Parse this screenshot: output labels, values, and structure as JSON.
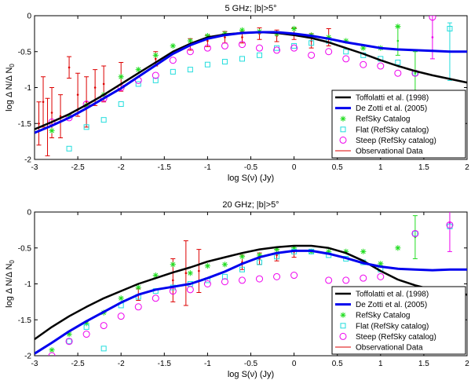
{
  "colors": {
    "tofolatti": "#000000",
    "dezotti": "#0000ee",
    "refsky": "#22dd22",
    "flat": "#22dddd",
    "steep": "#ee00ee",
    "obs": "#dd0000"
  },
  "chart_data": [
    {
      "type": "line",
      "title": "5 GHz; |b|>5°",
      "xlabel": "log S(ν) (Jy)",
      "ylabel": "log Δ N/Δ N",
      "ylabel_sub": "0",
      "xlim": [
        -3,
        2
      ],
      "ylim": [
        -2,
        0
      ],
      "xticks": [
        "-3",
        "-2.5",
        "-2",
        "-1.5",
        "-1",
        "-0.5",
        "0",
        "0.5",
        "1",
        "1.5",
        "2"
      ],
      "yticks": [
        "0",
        "-0.5",
        "-1",
        "-1.5",
        "-2"
      ],
      "legend": {
        "position": "bottom-right",
        "entries": [
          "Toffolatti et al. (1998)",
          "De Zotti et al. (2005)",
          "RefSky Catalog",
          "Flat (RefSky catalog)",
          "Steep (RefSky catalog)",
          "Observational Data"
        ]
      },
      "series": [
        {
          "name": "Toffolatti et al. (1998)",
          "kind": "line",
          "x": [
            -3.0,
            -2.8,
            -2.6,
            -2.4,
            -2.2,
            -2.0,
            -1.8,
            -1.6,
            -1.4,
            -1.2,
            -1.0,
            -0.8,
            -0.6,
            -0.4,
            -0.2,
            0.0,
            0.2,
            0.4,
            0.6,
            0.8,
            1.0,
            1.2,
            1.4,
            1.6,
            1.8,
            2.0
          ],
          "y": [
            -1.58,
            -1.48,
            -1.37,
            -1.24,
            -1.1,
            -0.95,
            -0.8,
            -0.65,
            -0.5,
            -0.39,
            -0.3,
            -0.26,
            -0.24,
            -0.23,
            -0.24,
            -0.27,
            -0.31,
            -0.37,
            -0.45,
            -0.53,
            -0.62,
            -0.7,
            -0.77,
            -0.83,
            -0.88,
            -0.93
          ]
        },
        {
          "name": "De Zotti et al. (2005)",
          "kind": "line",
          "x": [
            -3.0,
            -2.8,
            -2.6,
            -2.4,
            -2.2,
            -2.0,
            -1.8,
            -1.6,
            -1.4,
            -1.2,
            -1.0,
            -0.8,
            -0.6,
            -0.4,
            -0.2,
            0.0,
            0.2,
            0.4,
            0.6,
            0.8,
            1.0,
            1.2,
            1.4,
            1.6,
            1.8,
            2.0
          ],
          "y": [
            -1.63,
            -1.53,
            -1.42,
            -1.29,
            -1.15,
            -1.01,
            -0.85,
            -0.69,
            -0.53,
            -0.41,
            -0.32,
            -0.27,
            -0.24,
            -0.23,
            -0.23,
            -0.25,
            -0.28,
            -0.32,
            -0.37,
            -0.41,
            -0.45,
            -0.47,
            -0.48,
            -0.49,
            -0.5,
            -0.5
          ]
        },
        {
          "name": "RefSky Catalog",
          "kind": "marker",
          "x": [
            -2.8,
            -2.6,
            -2.4,
            -2.2,
            -2.0,
            -1.8,
            -1.6,
            -1.4,
            -1.2,
            -1.0,
            -0.8,
            -0.6,
            -0.4,
            -0.2,
            0.0,
            0.2,
            0.4,
            0.6,
            0.8,
            1.0,
            1.2
          ],
          "y": [
            -1.6,
            -1.4,
            -1.25,
            -1.1,
            -0.85,
            -0.75,
            -0.55,
            -0.42,
            -0.35,
            -0.28,
            -0.25,
            -0.2,
            -0.22,
            -0.25,
            -0.18,
            -0.27,
            -0.3,
            -0.35,
            -0.45,
            -0.45,
            -0.15
          ]
        },
        {
          "name": "Flat (RefSky catalog)",
          "kind": "marker",
          "x": [
            -2.6,
            -2.4,
            -2.2,
            -2.0,
            -1.8,
            -1.6,
            -1.4,
            -1.2,
            -1.0,
            -0.8,
            -0.6,
            -0.4,
            -0.2,
            0.0,
            0.2,
            0.4,
            0.6,
            0.8,
            1.0,
            1.2,
            1.4,
            1.8
          ],
          "y": [
            -1.85,
            -1.55,
            -1.45,
            -1.23,
            -0.95,
            -0.9,
            -0.78,
            -0.75,
            -0.68,
            -0.64,
            -0.6,
            -0.55,
            -0.45,
            -0.42,
            -0.38,
            -0.35,
            -0.5,
            -0.55,
            -0.6,
            -0.65,
            -0.8,
            -0.18
          ]
        },
        {
          "name": "Steep (RefSky catalog)",
          "kind": "marker",
          "x": [
            -2.8,
            -2.6,
            -2.4,
            -2.2,
            -2.0,
            -1.8,
            -1.6,
            -1.4,
            -1.2,
            -1.0,
            -0.8,
            -0.6,
            -0.4,
            -0.2,
            0.0,
            0.2,
            0.4,
            0.6,
            0.8,
            1.0,
            1.2,
            1.4,
            1.6
          ],
          "y": [
            -1.48,
            -1.42,
            -1.23,
            -1.15,
            -1.0,
            -0.9,
            -0.83,
            -0.62,
            -0.5,
            -0.45,
            -0.42,
            -0.4,
            -0.45,
            -0.48,
            -0.45,
            -0.55,
            -0.5,
            -0.6,
            -0.68,
            -0.7,
            -0.8,
            -0.8,
            -0.02
          ]
        },
        {
          "name": "Observational Data",
          "kind": "errorbar",
          "x": [
            -2.95,
            -2.9,
            -2.85,
            -2.8,
            -2.7,
            -2.6,
            -2.5,
            -2.4,
            -2.3,
            -2.2,
            -2.0,
            -1.6,
            -1.2,
            -1.0,
            -0.8,
            -0.6,
            -0.4,
            -0.2,
            0.0,
            0.2,
            0.4,
            1.2,
            1.4,
            1.6,
            1.8
          ],
          "y": [
            -1.5,
            -1.2,
            -1.55,
            -1.35,
            -1.4,
            -0.72,
            -1.1,
            -1.2,
            -1.0,
            -0.95,
            -0.85,
            -0.6,
            -0.4,
            -0.35,
            -0.3,
            -0.3,
            -0.25,
            -0.28,
            -0.25,
            -0.35,
            -0.3,
            -0.35,
            -0.8,
            -0.3,
            -0.5
          ],
          "yerr": [
            0.3,
            0.35,
            0.4,
            0.35,
            0.3,
            0.15,
            0.3,
            0.35,
            0.25,
            0.25,
            0.2,
            0.1,
            0.08,
            0.08,
            0.08,
            0.08,
            0.08,
            0.08,
            0.08,
            0.1,
            0.12,
            0.2,
            0.3,
            0.3,
            0.4
          ],
          "errcolor": [
            "#dd0000",
            "#dd0000",
            "#dd0000",
            "#dd0000",
            "#dd0000",
            "#dd0000",
            "#dd0000",
            "#dd0000",
            "#dd0000",
            "#dd0000",
            "#dd0000",
            "#dd0000",
            "#dd0000",
            "#dd0000",
            "#dd0000",
            "#dd0000",
            "#dd0000",
            "#dd0000",
            "#dd0000",
            "#dd0000",
            "#dd0000",
            "#22dd22",
            "#22dd22",
            "#ee00ee",
            "#22dddd"
          ]
        }
      ]
    },
    {
      "type": "line",
      "title": "20 GHz; |b|>5°",
      "xlabel": "log S(ν) (Jy)",
      "ylabel": "log Δ N/Δ N",
      "ylabel_sub": "0",
      "xlim": [
        -3,
        2
      ],
      "ylim": [
        -2,
        0
      ],
      "xticks": [
        "-3",
        "-2.5",
        "-2",
        "-1.5",
        "-1",
        "-0.5",
        "0",
        "0.5",
        "1",
        "1.5",
        "2"
      ],
      "yticks": [
        "0",
        "-0.5",
        "-1",
        "-1.5",
        "-2"
      ],
      "legend": {
        "position": "bottom-right",
        "entries": [
          "Toffolatti et al. (1998)",
          "De Zotti et al. (2005)",
          "RefSky Catalog",
          "Flat (RefSky catalog)",
          "Steep (RefSky catalog)",
          "Observational Data"
        ]
      },
      "series": [
        {
          "name": "Toffolatti et al. (1998)",
          "kind": "line",
          "x": [
            -3.0,
            -2.8,
            -2.6,
            -2.4,
            -2.2,
            -2.0,
            -1.8,
            -1.6,
            -1.4,
            -1.2,
            -1.0,
            -0.8,
            -0.6,
            -0.4,
            -0.2,
            0.0,
            0.2,
            0.4,
            0.6,
            0.8,
            1.0,
            1.2,
            1.4,
            1.6,
            1.8,
            2.0
          ],
          "y": [
            -1.77,
            -1.6,
            -1.45,
            -1.32,
            -1.2,
            -1.1,
            -1.0,
            -0.92,
            -0.84,
            -0.77,
            -0.69,
            -0.63,
            -0.57,
            -0.52,
            -0.49,
            -0.47,
            -0.47,
            -0.5,
            -0.57,
            -0.68,
            -0.82,
            -0.94,
            -1.02,
            -1.08,
            -1.12,
            -1.15
          ]
        },
        {
          "name": "De Zotti et al. (2005)",
          "kind": "line",
          "x": [
            -3.0,
            -2.8,
            -2.6,
            -2.4,
            -2.2,
            -2.0,
            -1.8,
            -1.6,
            -1.4,
            -1.2,
            -1.0,
            -0.8,
            -0.6,
            -0.4,
            -0.2,
            0.0,
            0.2,
            0.4,
            0.6,
            0.8,
            1.0,
            1.2,
            1.4,
            1.6,
            1.8,
            2.0
          ],
          "y": [
            -1.97,
            -1.82,
            -1.66,
            -1.52,
            -1.39,
            -1.26,
            -1.15,
            -1.08,
            -1.04,
            -1.0,
            -0.92,
            -0.83,
            -0.72,
            -0.63,
            -0.57,
            -0.54,
            -0.54,
            -0.58,
            -0.64,
            -0.71,
            -0.76,
            -0.79,
            -0.8,
            -0.81,
            -0.8,
            -0.8
          ]
        },
        {
          "name": "RefSky Catalog",
          "kind": "marker",
          "x": [
            -2.8,
            -2.6,
            -2.4,
            -2.2,
            -2.0,
            -1.8,
            -1.6,
            -1.4,
            -1.2,
            -1.0,
            -0.8,
            -0.6,
            -0.4,
            -0.2,
            0.0,
            0.2,
            0.4,
            0.6,
            0.8,
            1.0,
            1.2
          ],
          "y": [
            -1.92,
            -1.7,
            -1.55,
            -1.4,
            -1.2,
            -1.05,
            -0.88,
            -0.73,
            -0.85,
            -0.75,
            -0.73,
            -0.62,
            -0.6,
            -0.52,
            -0.5,
            -0.55,
            -0.55,
            -0.55,
            -0.55,
            -0.72,
            -0.5
          ]
        },
        {
          "name": "Flat (RefSky catalog)",
          "kind": "marker",
          "x": [
            -2.6,
            -2.4,
            -2.2,
            -2.0,
            -1.8,
            -1.6,
            -1.4,
            -1.2,
            -1.0,
            -0.8,
            -0.6,
            -0.4,
            -0.2,
            0.0,
            0.2,
            0.4,
            0.6,
            0.8,
            1.0,
            1.4,
            1.8
          ],
          "y": [
            -1.8,
            -1.6,
            -1.9,
            -1.3,
            -1.18,
            -1.1,
            -1.05,
            -1.0,
            -0.95,
            -0.9,
            -0.8,
            -0.7,
            -0.62,
            -0.55,
            -0.55,
            -0.6,
            -0.65,
            -0.7,
            -0.8,
            -0.3,
            -0.2
          ]
        },
        {
          "name": "Steep (RefSky catalog)",
          "kind": "marker",
          "x": [
            -2.8,
            -2.6,
            -2.4,
            -2.2,
            -2.0,
            -1.8,
            -1.6,
            -1.4,
            -1.2,
            -1.0,
            -0.8,
            -0.6,
            -0.4,
            -0.2,
            0.0,
            0.4,
            0.6,
            0.8,
            1.0,
            1.4,
            1.8
          ],
          "y": [
            -2.0,
            -1.8,
            -1.7,
            -1.58,
            -1.45,
            -1.32,
            -1.2,
            -1.1,
            -1.08,
            -1.0,
            -0.97,
            -0.95,
            -0.93,
            -0.9,
            -0.88,
            -0.95,
            -0.95,
            -0.92,
            -0.9,
            -0.3,
            -0.18
          ]
        },
        {
          "name": "Observational Data",
          "kind": "errorbar",
          "x": [
            -1.8,
            -1.4,
            -1.25,
            -1.1,
            -0.6,
            -0.4,
            -0.2,
            0.0,
            1.4,
            1.8
          ],
          "y": [
            -1.15,
            -0.95,
            -0.85,
            -0.82,
            -0.7,
            -0.65,
            -0.6,
            -0.55,
            -0.35,
            -0.15
          ],
          "yerr": [
            0.08,
            0.3,
            0.45,
            0.3,
            0.1,
            0.08,
            0.08,
            0.08,
            0.3,
            0.4
          ],
          "errcolor": [
            "#dd0000",
            "#dd0000",
            "#dd0000",
            "#dd0000",
            "#dd0000",
            "#dd0000",
            "#dd0000",
            "#dd0000",
            "#22dd22",
            "#ee00ee"
          ]
        }
      ]
    }
  ]
}
